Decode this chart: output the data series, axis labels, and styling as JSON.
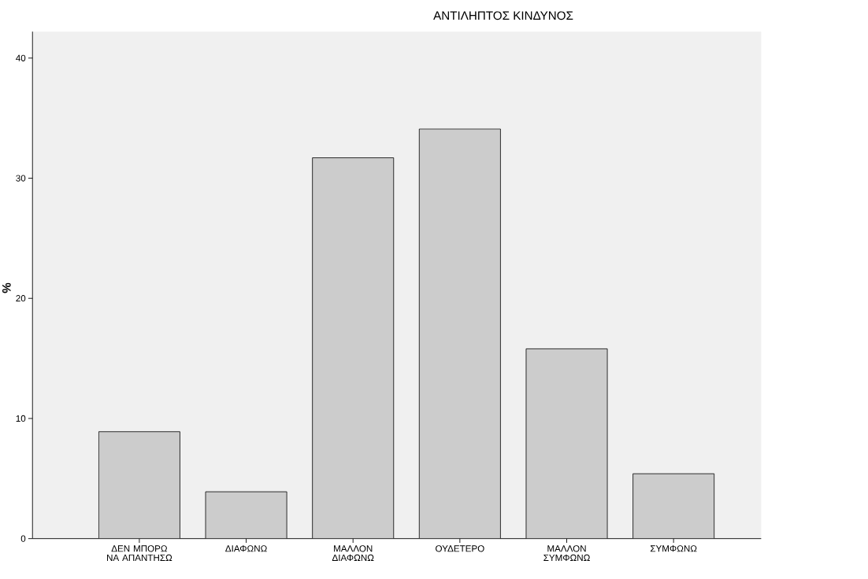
{
  "chart_data": {
    "type": "bar",
    "title": "ΑΝΤΙΛΗΠΤΟΣ ΚΙΝΔΥΝΟΣ",
    "ylabel": "%",
    "categories": [
      "ΔΕΝ ΜΠΟΡΩ ΝΑ ΑΠΑΝΤΗΣΩ",
      "ΔΙΑΦΩΝΩ",
      "ΜΑΛΛΟΝ ΔΙΑΦΩΝΩ",
      "ΟΥΔΕΤΕΡΟ",
      "ΜΑΛΛΟΝ ΣΥΜΦΩΝΩ",
      "ΣΥΜΦΩΝΩ"
    ],
    "values": [
      8.9,
      3.9,
      31.7,
      34.1,
      15.8,
      5.4
    ],
    "color": "#cccccc",
    "ylim": [
      0,
      42.2
    ],
    "yticks": [
      0,
      10,
      20,
      30,
      40
    ]
  }
}
